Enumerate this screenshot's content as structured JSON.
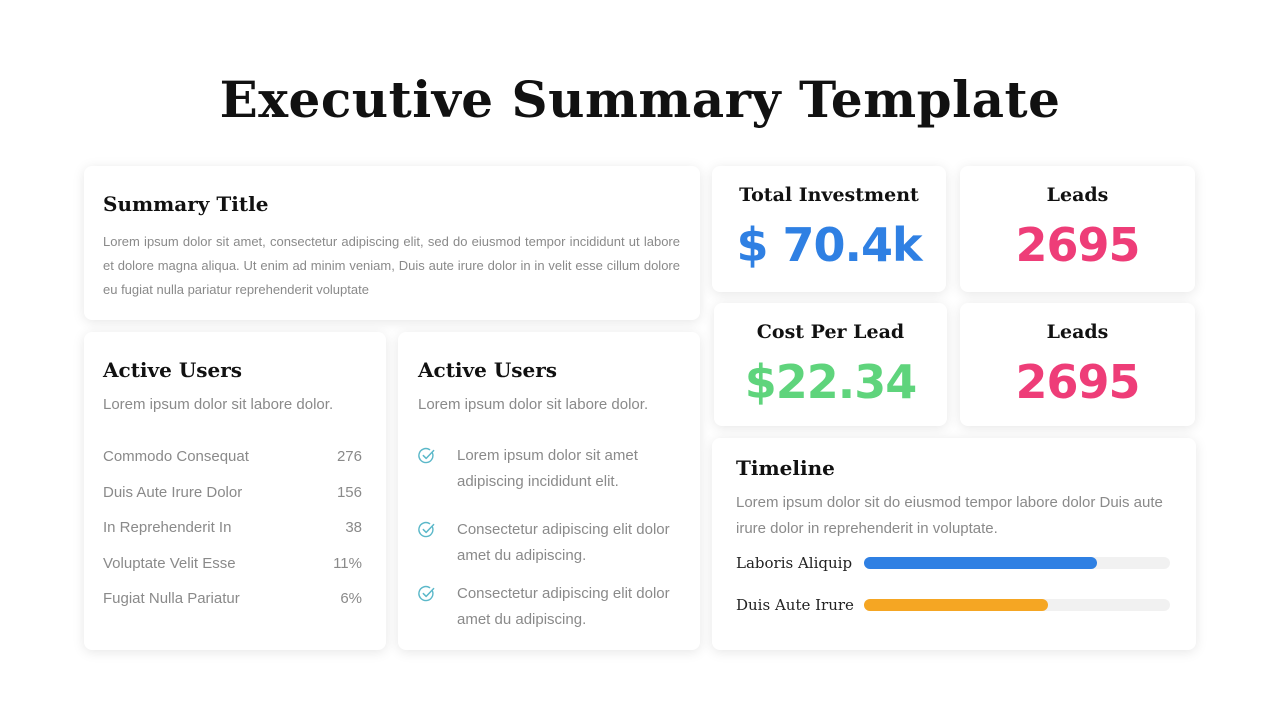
{
  "page": {
    "title": "Executive Summary Template"
  },
  "summary": {
    "title": "Summary Title",
    "body": "Lorem ipsum dolor sit amet, consectetur adipiscing  elit, sed do eiusmod  tempor incididunt  ut labore et dolore magna aliqua.  Ut enim ad minim veniam, Duis aute irure dolor in in velit esse cillum dolore eu fugiat nulla pariatur reprehenderit  voluptate"
  },
  "active_users_1": {
    "title": "Active Users",
    "subtitle": "Lorem ipsum dolor sit labore dolor.",
    "stats": [
      {
        "label": "Commodo Consequat",
        "value": "276"
      },
      {
        "label": "Duis Aute Irure Dolor",
        "value": "156"
      },
      {
        "label": "In Reprehenderit In",
        "value": "38"
      },
      {
        "label": "Voluptate Velit Esse",
        "value": "11%"
      },
      {
        "label": "Fugiat Nulla Pariatur",
        "value": "6%"
      }
    ]
  },
  "active_users_2": {
    "title": "Active Users",
    "subtitle": "Lorem ipsum dolor sit labore dolor.",
    "items": [
      "Lorem ipsum dolor sit amet adipiscing incididunt elit.",
      "Consectetur adipiscing elit dolor amet du adipiscing.",
      "Consectetur adipiscing elit dolor amet du adipiscing."
    ],
    "check_icon": "check-circle-icon",
    "check_color": "#5bb8c9"
  },
  "kpis": [
    {
      "label": "Total Investment",
      "value": "$ 70.4k",
      "color": "#2f80e3"
    },
    {
      "label": "Leads",
      "value": "2695",
      "color": "#ee3d78"
    },
    {
      "label": "Cost Per Lead",
      "value": "$22.34",
      "color": "#5fd47c"
    },
    {
      "label": "Leads",
      "value": "2695",
      "color": "#ee3d78"
    }
  ],
  "timeline": {
    "title": "Timeline",
    "body": "Lorem ipsum dolor sit do eiusmod tempor labore dolor Duis aute irure dolor in reprehenderit in voluptate.",
    "bars": [
      {
        "label": "Laboris Aliquip",
        "progress": 0.76,
        "color": "#2f80e3"
      },
      {
        "label": "Duis Aute Irure",
        "progress": 0.6,
        "color": "#f5a623"
      }
    ]
  }
}
